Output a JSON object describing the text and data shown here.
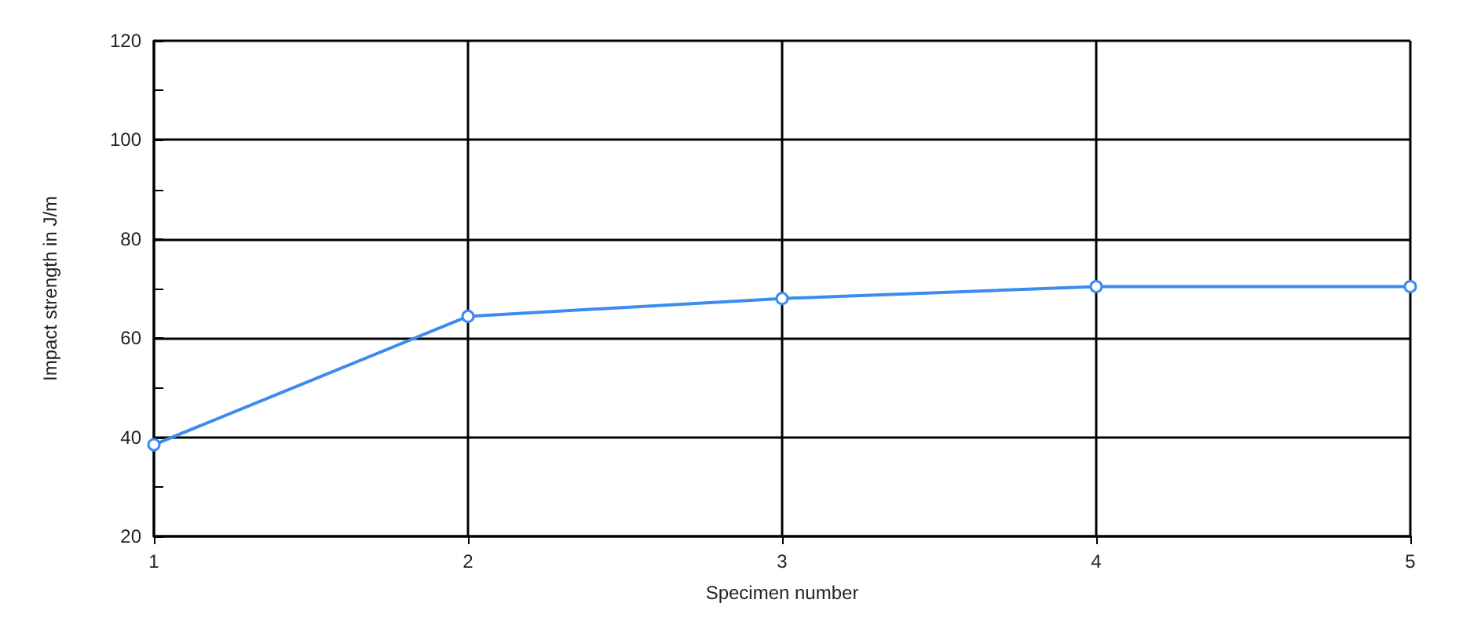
{
  "chart_data": {
    "type": "line",
    "xlabel": "Specimen number",
    "ylabel": "Impact strength in J/m",
    "x": [
      1,
      2,
      3,
      4,
      5
    ],
    "series": [
      {
        "color": "#3d8bef",
        "values": [
          38.5,
          64.4,
          68,
          70.4,
          70.4
        ]
      }
    ],
    "xlim": [
      1,
      5
    ],
    "xticks": [
      1,
      2,
      3,
      4,
      5
    ],
    "ylim": [
      20,
      120
    ],
    "yticks": [
      20,
      {
        "value": 30,
        "label": null
      },
      40,
      {
        "value": 50,
        "label": null
      },
      60,
      {
        "value": 70,
        "label": null
      },
      80,
      {
        "value": 90,
        "label": null
      },
      100,
      {
        "value": 110,
        "label": null
      },
      120
    ],
    "grid": true,
    "marker": "circle",
    "line_style": "solid"
  }
}
